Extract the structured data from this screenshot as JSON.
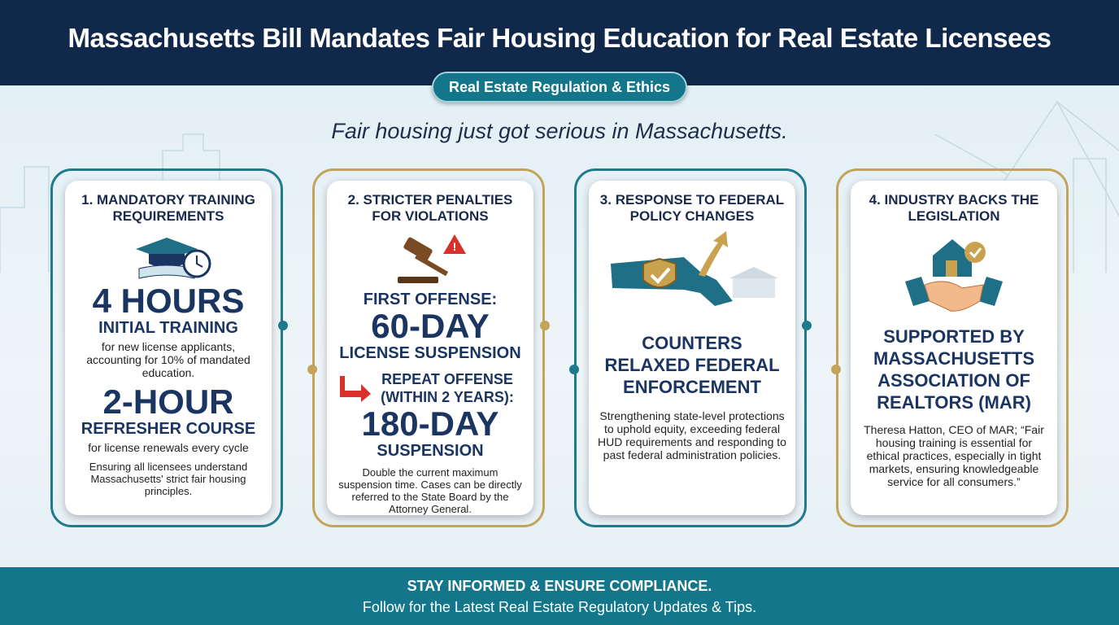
{
  "header": {
    "title": "Massachusetts Bill Mandates Fair Housing Education for Real Estate Licensees"
  },
  "tag": "Real Estate Regulation & Ethics",
  "subtitle": "Fair housing just got serious in Massachusetts.",
  "cards": [
    {
      "heading": "1. MANDATORY TRAINING REQUIREMENTS",
      "stat": "4 HOURS",
      "stat_label": "INITIAL TRAINING",
      "stat_note": "for new license applicants, accounting for 10% of mandated education.",
      "stat2": "2-HOUR",
      "stat2_label": "REFRESHER COURSE",
      "stat2_note": "for license renewals every cycle",
      "note": "Ensuring all licensees understand Massachusetts' strict fair housing principles."
    },
    {
      "heading": "2. STRICTER PENALTIES FOR VIOLATIONS",
      "stat_intro": "FIRST OFFENSE:",
      "stat": "60-DAY",
      "stat_label": "LICENSE SUSPENSION",
      "stat2_intro": "REPEAT OFFENSE (WITHIN 2 YEARS):",
      "stat2": "180-DAY",
      "stat2_label": "SUSPENSION",
      "note": "Double the current maximum suspension time. Cases can be directly referred to the State Board by the Attorney General."
    },
    {
      "heading": "3. RESPONSE TO FEDERAL POLICY CHANGES",
      "headline": "COUNTERS RELAXED FEDERAL ENFORCEMENT",
      "note": "Strengthening state-level protections to uphold equity, exceeding federal HUD requirements and responding to past federal administration policies."
    },
    {
      "heading": "4. INDUSTRY BACKS THE LEGISLATION",
      "headline": "SUPPORTED BY MASSACHUSETTS ASSOCIATION OF REALTORS (MAR)",
      "note": "Theresa Hatton, CEO of MAR; “Fair housing training is essential for ethical practices, especially in tight markets, ensuring knowledgeable service for all consumers.”"
    }
  ],
  "footer": {
    "line1": "STAY INFORMED & ENSURE COMPLIANCE.",
    "line2": "Follow for the Latest Real Estate Regulatory Updates & Tips."
  }
}
